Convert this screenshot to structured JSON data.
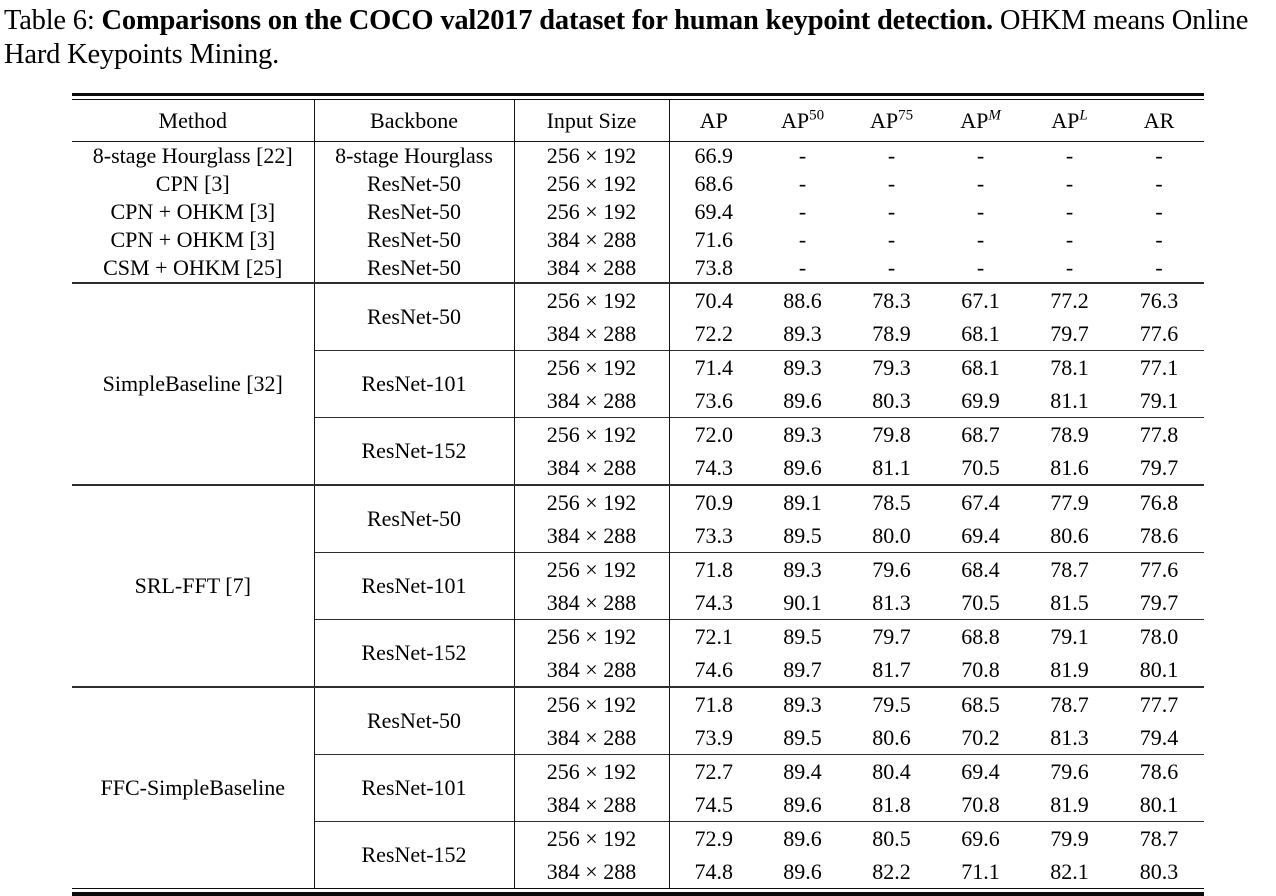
{
  "caption": {
    "prefix": "Table 6: ",
    "bold": "Comparisons on the COCO val2017 dataset for human keypoint detection.",
    "suffix": " OHKM means Online Hard Keypoints Mining."
  },
  "table": {
    "headers": [
      {
        "label": "Method",
        "sup": "",
        "sup_italic": false
      },
      {
        "label": "Backbone",
        "sup": "",
        "sup_italic": false
      },
      {
        "label": "Input Size",
        "sup": "",
        "sup_italic": false
      },
      {
        "label": "AP",
        "sup": "",
        "sup_italic": false
      },
      {
        "label": "AP",
        "sup": "50",
        "sup_italic": false
      },
      {
        "label": "AP",
        "sup": "75",
        "sup_italic": false
      },
      {
        "label": "AP",
        "sup": "M",
        "sup_italic": true
      },
      {
        "label": "AP",
        "sup": "L",
        "sup_italic": true
      },
      {
        "label": "AR",
        "sup": "",
        "sup_italic": false
      }
    ],
    "simple_rows": [
      {
        "method": "8-stage Hourglass [22]",
        "backbone": "8-stage Hourglass",
        "input_size": "256 × 192",
        "metrics": [
          "66.9",
          "-",
          "-",
          "-",
          "-",
          "-"
        ]
      },
      {
        "method": "CPN [3]",
        "backbone": "ResNet-50",
        "input_size": "256 × 192",
        "metrics": [
          "68.6",
          "-",
          "-",
          "-",
          "-",
          "-"
        ]
      },
      {
        "method": "CPN + OHKM [3]",
        "backbone": "ResNet-50",
        "input_size": "256 × 192",
        "metrics": [
          "69.4",
          "-",
          "-",
          "-",
          "-",
          "-"
        ]
      },
      {
        "method": "CPN + OHKM [3]",
        "backbone": "ResNet-50",
        "input_size": "384 × 288",
        "metrics": [
          "71.6",
          "-",
          "-",
          "-",
          "-",
          "-"
        ]
      },
      {
        "method": "CSM + OHKM [25]",
        "backbone": "ResNet-50",
        "input_size": "384 × 288",
        "metrics": [
          "73.8",
          "-",
          "-",
          "-",
          "-",
          "-"
        ]
      }
    ],
    "groups": [
      {
        "method": "SimpleBaseline [32]",
        "backbones": [
          {
            "name": "ResNet-50",
            "rows": [
              {
                "input_size": "256 × 192",
                "metrics": [
                  "70.4",
                  "88.6",
                  "78.3",
                  "67.1",
                  "77.2",
                  "76.3"
                ]
              },
              {
                "input_size": "384 × 288",
                "metrics": [
                  "72.2",
                  "89.3",
                  "78.9",
                  "68.1",
                  "79.7",
                  "77.6"
                ]
              }
            ]
          },
          {
            "name": "ResNet-101",
            "rows": [
              {
                "input_size": "256 × 192",
                "metrics": [
                  "71.4",
                  "89.3",
                  "79.3",
                  "68.1",
                  "78.1",
                  "77.1"
                ]
              },
              {
                "input_size": "384 × 288",
                "metrics": [
                  "73.6",
                  "89.6",
                  "80.3",
                  "69.9",
                  "81.1",
                  "79.1"
                ]
              }
            ]
          },
          {
            "name": "ResNet-152",
            "rows": [
              {
                "input_size": "256 × 192",
                "metrics": [
                  "72.0",
                  "89.3",
                  "79.8",
                  "68.7",
                  "78.9",
                  "77.8"
                ]
              },
              {
                "input_size": "384 × 288",
                "metrics": [
                  "74.3",
                  "89.6",
                  "81.1",
                  "70.5",
                  "81.6",
                  "79.7"
                ]
              }
            ]
          }
        ]
      },
      {
        "method": "SRL-FFT [7]",
        "backbones": [
          {
            "name": "ResNet-50",
            "rows": [
              {
                "input_size": "256 × 192",
                "metrics": [
                  "70.9",
                  "89.1",
                  "78.5",
                  "67.4",
                  "77.9",
                  "76.8"
                ]
              },
              {
                "input_size": "384 × 288",
                "metrics": [
                  "73.3",
                  "89.5",
                  "80.0",
                  "69.4",
                  "80.6",
                  "78.6"
                ]
              }
            ]
          },
          {
            "name": "ResNet-101",
            "rows": [
              {
                "input_size": "256 × 192",
                "metrics": [
                  "71.8",
                  "89.3",
                  "79.6",
                  "68.4",
                  "78.7",
                  "77.6"
                ]
              },
              {
                "input_size": "384 × 288",
                "metrics": [
                  "74.3",
                  "90.1",
                  "81.3",
                  "70.5",
                  "81.5",
                  "79.7"
                ]
              }
            ]
          },
          {
            "name": "ResNet-152",
            "rows": [
              {
                "input_size": "256 × 192",
                "metrics": [
                  "72.1",
                  "89.5",
                  "79.7",
                  "68.8",
                  "79.1",
                  "78.0"
                ]
              },
              {
                "input_size": "384 × 288",
                "metrics": [
                  "74.6",
                  "89.7",
                  "81.7",
                  "70.8",
                  "81.9",
                  "80.1"
                ]
              }
            ]
          }
        ]
      },
      {
        "method": "FFC-SimpleBaseline",
        "backbones": [
          {
            "name": "ResNet-50",
            "rows": [
              {
                "input_size": "256 × 192",
                "metrics": [
                  "71.8",
                  "89.3",
                  "79.5",
                  "68.5",
                  "78.7",
                  "77.7"
                ]
              },
              {
                "input_size": "384 × 288",
                "metrics": [
                  "73.9",
                  "89.5",
                  "80.6",
                  "70.2",
                  "81.3",
                  "79.4"
                ]
              }
            ]
          },
          {
            "name": "ResNet-101",
            "rows": [
              {
                "input_size": "256 × 192",
                "metrics": [
                  "72.7",
                  "89.4",
                  "80.4",
                  "69.4",
                  "79.6",
                  "78.6"
                ]
              },
              {
                "input_size": "384 × 288",
                "metrics": [
                  "74.5",
                  "89.6",
                  "81.8",
                  "70.8",
                  "81.9",
                  "80.1"
                ]
              }
            ]
          },
          {
            "name": "ResNet-152",
            "rows": [
              {
                "input_size": "256 × 192",
                "metrics": [
                  "72.9",
                  "89.6",
                  "80.5",
                  "69.6",
                  "79.9",
                  "78.7"
                ]
              },
              {
                "input_size": "384 × 288",
                "metrics": [
                  "74.8",
                  "89.6",
                  "82.2",
                  "71.1",
                  "82.1",
                  "80.3"
                ]
              }
            ]
          }
        ]
      }
    ]
  }
}
